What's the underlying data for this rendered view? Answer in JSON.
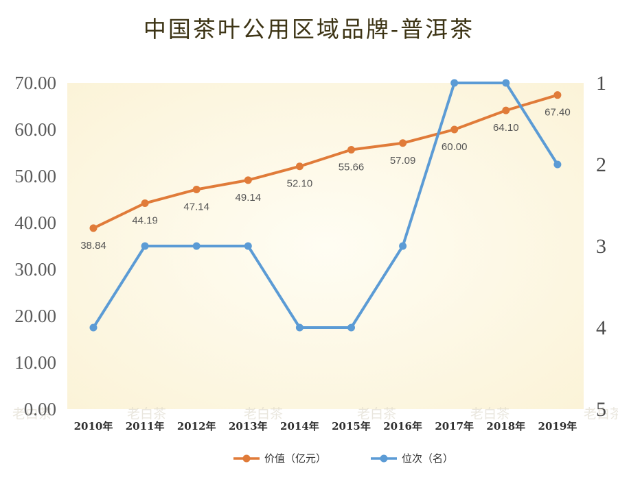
{
  "chart_data": {
    "type": "line",
    "title": "中国茶叶公用区域品牌-普洱茶",
    "categories": [
      "2010年",
      "2011年",
      "2012年",
      "2013年",
      "2014年",
      "2015年",
      "2016年",
      "2017年",
      "2018年",
      "2019年"
    ],
    "y_left": {
      "ticks": [
        "70.00",
        "60.00",
        "50.00",
        "40.00",
        "30.00",
        "20.00",
        "10.00",
        "0.00"
      ],
      "ylim": [
        0,
        70
      ]
    },
    "y_right": {
      "ticks": [
        "1",
        "2",
        "3",
        "4",
        "5"
      ],
      "ylim": [
        1,
        5
      ],
      "inverted": true
    },
    "series": [
      {
        "name": "价值（亿元）",
        "axis": "left",
        "color": "#e07b39",
        "values": [
          38.84,
          44.19,
          47.14,
          49.14,
          52.1,
          55.66,
          57.09,
          60.0,
          64.1,
          67.4
        ],
        "labels": [
          "38.84",
          "44.19",
          "47.14",
          "49.14",
          "52.10",
          "55.66",
          "57.09",
          "60.00",
          "64.10",
          "67.40"
        ]
      },
      {
        "name": "位次（名）",
        "axis": "right",
        "color": "#5b9bd5",
        "values": [
          4,
          3,
          3,
          3,
          4,
          4,
          3,
          1,
          1,
          2
        ]
      }
    ],
    "legend_position": "bottom",
    "grid": false,
    "plot_background": "#fdf9ea",
    "watermark": "老白茶"
  }
}
